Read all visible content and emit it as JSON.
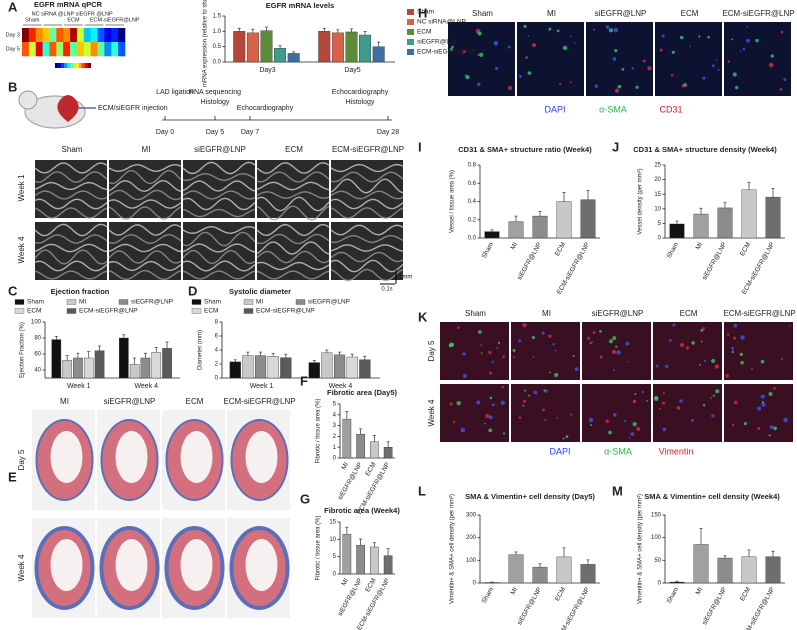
{
  "panel_labels": [
    "A",
    "B",
    "C",
    "D",
    "E",
    "F",
    "G",
    "H",
    "I",
    "J",
    "K",
    "L",
    "M"
  ],
  "timeline": {
    "injection": "ECM/siEGFR injection",
    "events": [
      "LAD ligation",
      "RNA sequencing",
      "Histology",
      "Echocardiography",
      "Echocardiography",
      "Histology"
    ],
    "days": [
      "Day 0",
      "Day 5",
      "Day 7",
      "Day 28"
    ]
  },
  "echo": {
    "columns": [
      "Sham",
      "MI",
      "siEGFR@LNP",
      "ECM",
      "ECM-siEGFR@LNP"
    ],
    "rows": [
      "Week 1",
      "Week 4"
    ],
    "scale_time": "0.1s",
    "scale_length": "1mm"
  },
  "histology": {
    "columns": [
      "MI",
      "siEGFR@LNP",
      "ECM",
      "ECM-siEGFR@LNP"
    ],
    "rows": [
      "Day 5",
      "Week 4"
    ]
  },
  "vessel_images": {
    "columns": [
      "Sham",
      "MI",
      "siEGFR@LNP",
      "ECM",
      "ECM-siEGFR@LNP"
    ],
    "stains": [
      "DAPI",
      "α-SMA",
      "CD31"
    ]
  },
  "fibro_images": {
    "columns": [
      "Sham",
      "MI",
      "siEGFR@LNP",
      "ECM",
      "ECM-siEGFR@LNP"
    ],
    "rows": [
      "Day 5",
      "Week 4"
    ],
    "stains": [
      "DAPI",
      "α-SMA",
      "Vimentin"
    ]
  },
  "chart_data": [
    {
      "type": "heatmap",
      "title": "EGFR mRNA qPCR",
      "rows": [
        "Day 3",
        "Day 5"
      ],
      "column_groups": [
        "Sham",
        "NC siRNA @LNP",
        "ECM",
        "siEGFR @LNP",
        "ECM-siEGFR@LNP"
      ],
      "values": [
        [
          1.1,
          0.95,
          0.85,
          0.8,
          0.6,
          0.9,
          0.85,
          1.05,
          0.7,
          0.45,
          0.5,
          0.35,
          0.25,
          0.3,
          0.15
        ],
        [
          0.9,
          0.7,
          1.0,
          0.55,
          0.9,
          0.65,
          0.95,
          0.6,
          0.8,
          0.7,
          0.85,
          0.6,
          0.4,
          0.55,
          0.35
        ]
      ]
    },
    {
      "type": "bar",
      "title": "EGFR mRNA levels",
      "y_label": "mRNA expression (relative to sham)",
      "legend": "right",
      "categories": [
        "Day3",
        "Day5"
      ],
      "series": [
        {
          "name": "Sham",
          "color": "#b5473a",
          "values": [
            1.0,
            1.0
          ],
          "errors": [
            0.1,
            0.1
          ]
        },
        {
          "name": "NC siRNA@LNP",
          "color": "#d9614c",
          "values": [
            0.95,
            0.95
          ],
          "errors": [
            0.12,
            0.1
          ]
        },
        {
          "name": "ECM",
          "color": "#5a8a3a",
          "values": [
            1.02,
            0.98
          ],
          "errors": [
            0.12,
            0.1
          ]
        },
        {
          "name": "siEGFR@LNP",
          "color": "#3f9b8a",
          "values": [
            0.45,
            0.88
          ],
          "errors": [
            0.08,
            0.12
          ]
        },
        {
          "name": "ECM-siEGFR@LNP",
          "color": "#3f6fa0",
          "values": [
            0.28,
            0.5
          ],
          "errors": [
            0.05,
            0.15
          ]
        }
      ],
      "ylim": [
        0,
        1.5
      ],
      "yticks": [
        {
          "value": 0,
          "label": "0.0"
        },
        {
          "value": 0.5,
          "label": "0.5"
        },
        {
          "value": 1,
          "label": "1.0"
        },
        {
          "value": 1.5,
          "label": "1.5"
        }
      ]
    },
    {
      "type": "bar",
      "title": "Ejection fraction",
      "y_label": "Ejection Fraction (%)",
      "legend": "top",
      "categories": [
        "Week 1",
        "Week 4"
      ],
      "series": [
        {
          "name": "Sham",
          "color": "#111111",
          "values": [
            78,
            80
          ],
          "errors": [
            4,
            4
          ]
        },
        {
          "name": "MI",
          "color": "#c8c8c8",
          "values": [
            52,
            47
          ],
          "errors": [
            6,
            8
          ]
        },
        {
          "name": "siEGFR@LNP",
          "color": "#8c8c8c",
          "values": [
            55,
            55
          ],
          "errors": [
            6,
            6
          ]
        },
        {
          "name": "ECM",
          "color": "#d9d9d9",
          "values": [
            55,
            62
          ],
          "errors": [
            8,
            6
          ]
        },
        {
          "name": "ECM-siEGFR@LNP",
          "color": "#5a5a5a",
          "values": [
            64,
            67
          ],
          "errors": [
            6,
            8
          ]
        }
      ],
      "ylim": [
        30,
        100
      ],
      "yticks": [
        40,
        60,
        80,
        100
      ]
    },
    {
      "type": "bar",
      "title": "Systolic diameter",
      "y_label": "Diameter (mm)",
      "legend": "top",
      "categories": [
        "Week 1",
        "Week 4"
      ],
      "series": [
        {
          "name": "Sham",
          "color": "#111111",
          "values": [
            2.3,
            2.2
          ],
          "errors": [
            0.3,
            0.3
          ]
        },
        {
          "name": "MI",
          "color": "#c8c8c8",
          "values": [
            3.2,
            3.6
          ],
          "errors": [
            0.5,
            0.4
          ]
        },
        {
          "name": "siEGFR@LNP",
          "color": "#8c8c8c",
          "values": [
            3.2,
            3.3
          ],
          "errors": [
            0.5,
            0.4
          ]
        },
        {
          "name": "ECM",
          "color": "#d9d9d9",
          "values": [
            3.1,
            3.0
          ],
          "errors": [
            0.4,
            0.4
          ]
        },
        {
          "name": "ECM-siEGFR@LNP",
          "color": "#5a5a5a",
          "values": [
            2.9,
            2.6
          ],
          "errors": [
            0.5,
            0.5
          ]
        }
      ],
      "ylim": [
        0,
        8
      ],
      "yticks": [
        0,
        2,
        4,
        6,
        8
      ]
    },
    {
      "type": "bar",
      "title": "Fibrotic area (Day5)",
      "y_label": "Fibrotic / tissue area (%)",
      "categories": [
        "MI",
        "siEGFR@LNP",
        "ECM",
        "ECM-siEGFR@LNP"
      ],
      "values": [
        3.6,
        2.2,
        1.5,
        1.0
      ],
      "errors": [
        0.7,
        0.5,
        0.6,
        0.5
      ],
      "colors": [
        "#a0a0a0",
        "#8c8c8c",
        "#c8c8c8",
        "#6e6e6e"
      ],
      "ylim": [
        0,
        5
      ],
      "yticks": [
        0,
        1,
        2,
        3,
        4,
        5
      ]
    },
    {
      "type": "bar",
      "title": "Fibrotic area (Week4)",
      "y_label": "Fibrotic / tissue area (%)",
      "categories": [
        "MI",
        "siEGFR@LNP",
        "ECM",
        "ECM-siEGFR@LNP"
      ],
      "values": [
        11.5,
        8.3,
        7.8,
        5.3
      ],
      "errors": [
        2,
        1.8,
        1.2,
        2
      ],
      "colors": [
        "#a0a0a0",
        "#8c8c8c",
        "#c8c8c8",
        "#6e6e6e"
      ],
      "ylim": [
        0,
        15
      ],
      "yticks": [
        0,
        5,
        10,
        15
      ]
    },
    {
      "type": "bar",
      "title": "CD31 & SMA+ structure ratio (Week4)",
      "y_label": "Vessel / tissue area (%)",
      "categories": [
        "Sham",
        "MI",
        "siEGFR@LNP",
        "ECM",
        "ECM-siEGFR@LNP"
      ],
      "values": [
        0.07,
        0.18,
        0.24,
        0.4,
        0.42
      ],
      "errors": [
        0.02,
        0.06,
        0.05,
        0.1,
        0.1
      ],
      "colors": [
        "#111111",
        "#a0a0a0",
        "#8c8c8c",
        "#c8c8c8",
        "#6e6e6e"
      ],
      "ylim": [
        0,
        0.8
      ],
      "yticks": [
        {
          "value": 0,
          "label": "0.0"
        },
        {
          "value": 0.2,
          "label": "0.2"
        },
        {
          "value": 0.4,
          "label": "0.4"
        },
        {
          "value": 0.6,
          "label": "0.6"
        },
        {
          "value": 0.8,
          "label": "0.8"
        }
      ]
    },
    {
      "type": "bar",
      "title": "CD31 & SMA+ structure density (Week4)",
      "y_label": "Vessel density (per mm²)",
      "categories": [
        "Sham",
        "MI",
        "siEGFR@LNP",
        "ECM",
        "ECM-siEGFR@LNP"
      ],
      "values": [
        4.8,
        8.2,
        10.3,
        16.5,
        14
      ],
      "errors": [
        1,
        2,
        1.8,
        2.5,
        3
      ],
      "colors": [
        "#111111",
        "#a0a0a0",
        "#8c8c8c",
        "#c8c8c8",
        "#6e6e6e"
      ],
      "ylim": [
        0,
        25
      ],
      "yticks": [
        0,
        5,
        10,
        15,
        20,
        25
      ]
    },
    {
      "type": "bar",
      "title": "SMA & Vimentin+ cell density (Day5)",
      "y_label": "Vimentin+ & SMA+ cell density (per mm²)",
      "categories": [
        "Sham",
        "MI",
        "siEGFR@LNP",
        "ECM",
        "ECM-siEGFR@LNP"
      ],
      "values": [
        2,
        125,
        70,
        115,
        82
      ],
      "errors": [
        2,
        12,
        15,
        40,
        20
      ],
      "colors": [
        "#111111",
        "#a0a0a0",
        "#8c8c8c",
        "#c8c8c8",
        "#6e6e6e"
      ],
      "ylim": [
        0,
        300
      ],
      "yticks": [
        0,
        100,
        200,
        300
      ]
    },
    {
      "type": "bar",
      "title": "SMA & Vimentin+ cell density (Week4)",
      "y_label": "Vimentin+ & SMA+ cell density (per mm²)",
      "categories": [
        "Sham",
        "MI",
        "siEGFR@LNP",
        "ECM",
        "ECM-siEGFR@LNP"
      ],
      "values": [
        2,
        85,
        55,
        58,
        58
      ],
      "errors": [
        2,
        35,
        5,
        15,
        12
      ],
      "colors": [
        "#111111",
        "#a0a0a0",
        "#8c8c8c",
        "#c8c8c8",
        "#6e6e6e"
      ],
      "ylim": [
        0,
        150
      ],
      "yticks": [
        0,
        50,
        100,
        150
      ]
    }
  ]
}
